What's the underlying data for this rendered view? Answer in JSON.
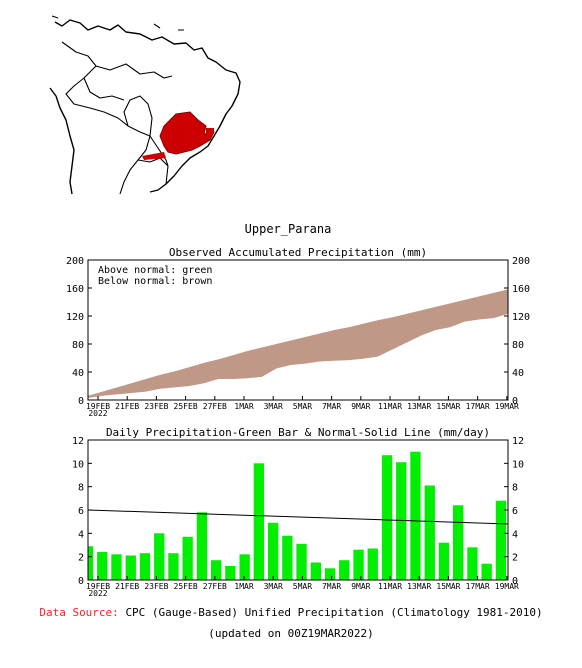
{
  "region_name": "Upper_Parana",
  "colors": {
    "anomaly_fill": "#c09888",
    "bar": "#00ee00",
    "region": "#cc0000",
    "source_label": "#ff2222"
  },
  "footer": {
    "source_label": "Data Source:",
    "source_text": "CPC (Gauge-Based) Unified Precipitation (Climatology 1981-2010)",
    "updated": "(updated on 00Z19MAR2022)"
  },
  "chart_data": [
    {
      "type": "area",
      "title": "Observed Accumulated Precipitation (mm)",
      "legend_lines": [
        "Above normal: green",
        "Below normal: brown"
      ],
      "ylim": [
        0,
        200
      ],
      "yticks": [
        0,
        40,
        80,
        120,
        160,
        200
      ],
      "x_tick_labels": [
        "19FEB",
        "21FEB",
        "23FEB",
        "25FEB",
        "27FEB",
        "1MAR",
        "3MAR",
        "5MAR",
        "7MAR",
        "9MAR",
        "11MAR",
        "13MAR",
        "15MAR",
        "17MAR",
        "19MAR"
      ],
      "x_year_label": "2022",
      "x": [
        "18FEB",
        "19FEB",
        "20FEB",
        "21FEB",
        "22FEB",
        "23FEB",
        "24FEB",
        "25FEB",
        "26FEB",
        "27FEB",
        "28FEB",
        "1MAR",
        "2MAR",
        "3MAR",
        "4MAR",
        "5MAR",
        "6MAR",
        "7MAR",
        "8MAR",
        "9MAR",
        "10MAR",
        "11MAR",
        "12MAR",
        "13MAR",
        "14MAR",
        "15MAR",
        "16MAR",
        "17MAR",
        "18MAR",
        "19MAR"
      ],
      "series": [
        {
          "values": [
            3,
            6,
            8,
            10,
            12,
            16,
            18,
            20,
            24,
            30,
            30,
            31,
            33,
            45,
            50,
            52,
            55,
            56,
            57,
            59,
            62,
            72,
            82,
            92,
            100,
            104,
            112,
            115,
            117,
            123
          ]
        },
        {
          "values": [
            6,
            12,
            18,
            24,
            30,
            36,
            41,
            47,
            53,
            58,
            64,
            70,
            75,
            80,
            85,
            90,
            95,
            100,
            104,
            109,
            114,
            118,
            123,
            128,
            133,
            138,
            143,
            148,
            153,
            158
          ]
        }
      ]
    },
    {
      "type": "bar",
      "title": "Daily Precipitation-Green Bar & Normal-Solid Line (mm/day)",
      "ylim": [
        0,
        12
      ],
      "yticks": [
        0,
        2,
        4,
        6,
        8,
        10,
        12
      ],
      "x_tick_labels": [
        "19FEB",
        "21FEB",
        "23FEB",
        "25FEB",
        "27FEB",
        "1MAR",
        "3MAR",
        "5MAR",
        "7MAR",
        "9MAR",
        "11MAR",
        "13MAR",
        "15MAR",
        "17MAR",
        "19MAR"
      ],
      "x_year_label": "2022",
      "categories": [
        "18FEB",
        "19FEB",
        "20FEB",
        "21FEB",
        "22FEB",
        "23FEB",
        "24FEB",
        "25FEB",
        "26FEB",
        "27FEB",
        "28FEB",
        "1MAR",
        "2MAR",
        "3MAR",
        "4MAR",
        "5MAR",
        "6MAR",
        "7MAR",
        "8MAR",
        "9MAR",
        "10MAR",
        "11MAR",
        "12MAR",
        "13MAR",
        "14MAR",
        "15MAR",
        "16MAR",
        "17MAR",
        "18MAR",
        "19MAR"
      ],
      "values": [
        2.9,
        2.4,
        2.2,
        2.1,
        2.3,
        4.0,
        2.3,
        3.7,
        5.8,
        1.7,
        1.2,
        2.2,
        10.0,
        4.9,
        3.8,
        3.1,
        1.5,
        1.0,
        1.7,
        2.6,
        2.7,
        10.7,
        10.1,
        11.0,
        8.1,
        3.2,
        6.4,
        2.8,
        1.4,
        6.8
      ],
      "normal_line": [
        6.0,
        4.8
      ]
    }
  ]
}
